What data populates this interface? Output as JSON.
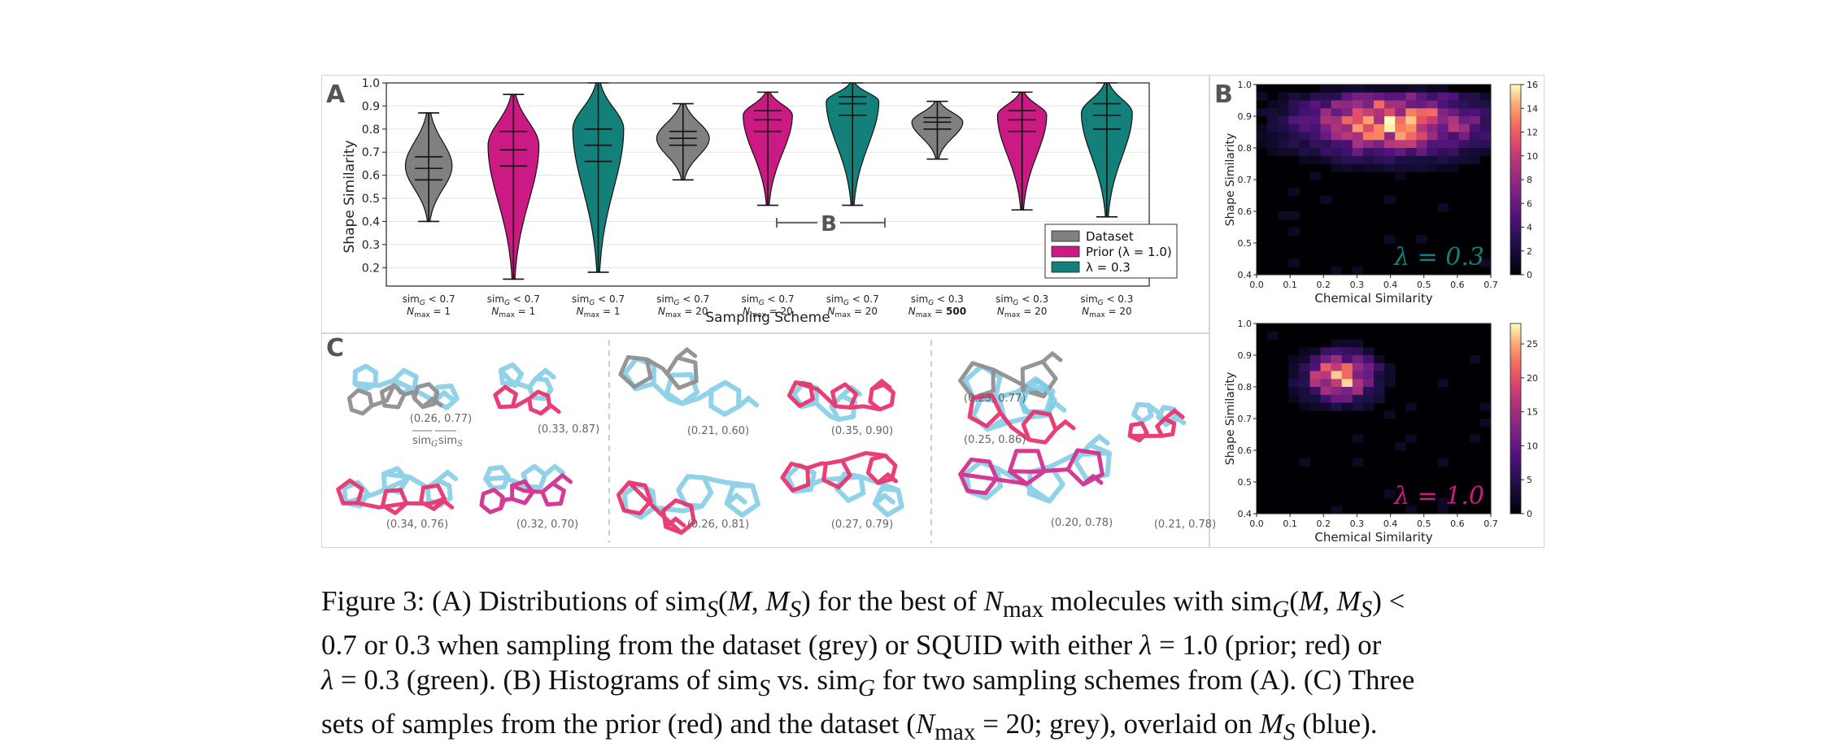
{
  "panel_a": {
    "letter": "A",
    "ylabel": "Shape Similarity",
    "xlabel": "Sampling Scheme",
    "yticks": [
      "1.0",
      "0.9",
      "0.8",
      "0.7",
      "0.6",
      "0.5",
      "0.4",
      "0.3",
      "0.2"
    ],
    "bracket_label": "B",
    "legend": [
      {
        "label": "Dataset",
        "color": "#808080"
      },
      {
        "label": "Prior (λ = 1.0)",
        "color": "#cc1a85"
      },
      {
        "label": "λ = 0.3",
        "color": "#138079"
      }
    ],
    "xcats": [
      {
        "sim": "sim_G < 0.7",
        "nmax": "N_max = 1",
        "color": "#808080",
        "bold": false
      },
      {
        "sim": "sim_G < 0.7",
        "nmax": "N_max = 1",
        "color": "#cc1a85",
        "bold": false
      },
      {
        "sim": "sim_G < 0.7",
        "nmax": "N_max = 1",
        "color": "#138079",
        "bold": false
      },
      {
        "sim": "sim_G < 0.7",
        "nmax": "N_max = 20",
        "color": "#808080",
        "bold": false
      },
      {
        "sim": "sim_G < 0.7",
        "nmax": "N_max = 20",
        "color": "#cc1a85",
        "bold": false
      },
      {
        "sim": "sim_G < 0.7",
        "nmax": "N_max = 20",
        "color": "#138079",
        "bold": false
      },
      {
        "sim": "sim_G < 0.3",
        "nmax": "N_max = 500",
        "color": "#808080",
        "bold": true
      },
      {
        "sim": "sim_G < 0.3",
        "nmax": "N_max = 20",
        "color": "#cc1a85",
        "bold": false
      },
      {
        "sim": "sim_G < 0.3",
        "nmax": "N_max = 20",
        "color": "#138079",
        "bold": false
      }
    ]
  },
  "chart_data": {
    "type": "violin",
    "ylabel": "Shape Similarity",
    "xlabel": "Sampling Scheme",
    "ylim": [
      0.12,
      1.0
    ],
    "series": [
      {
        "category": "sim_G<0.7, N_max=1",
        "group": "Dataset",
        "min": 0.4,
        "max": 0.87,
        "q1": 0.58,
        "median": 0.63,
        "q3": 0.68,
        "peak": 0.64,
        "width": 0.55
      },
      {
        "category": "sim_G<0.7, N_max=1",
        "group": "Prior (λ = 1.0)",
        "min": 0.15,
        "max": 0.95,
        "q1": 0.64,
        "median": 0.71,
        "q3": 0.79,
        "peak": 0.73,
        "width": 0.6
      },
      {
        "category": "sim_G<0.7, N_max=1",
        "group": "λ = 0.3",
        "min": 0.18,
        "max": 1.0,
        "q1": 0.66,
        "median": 0.73,
        "q3": 0.8,
        "peak": 0.8,
        "width": 0.6
      },
      {
        "category": "sim_G<0.7, N_max=20",
        "group": "Dataset",
        "min": 0.58,
        "max": 0.91,
        "q1": 0.73,
        "median": 0.76,
        "q3": 0.79,
        "peak": 0.76,
        "width": 0.62
      },
      {
        "category": "sim_G<0.7, N_max=20",
        "group": "Prior (λ = 1.0)",
        "min": 0.47,
        "max": 0.96,
        "q1": 0.79,
        "median": 0.84,
        "q3": 0.88,
        "peak": 0.86,
        "width": 0.58
      },
      {
        "category": "sim_G<0.7, N_max=20",
        "group": "λ = 0.3",
        "min": 0.47,
        "max": 1.0,
        "q1": 0.86,
        "median": 0.91,
        "q3": 0.94,
        "peak": 0.92,
        "width": 0.62
      },
      {
        "category": "sim_G<0.3, N_max=500",
        "group": "Dataset",
        "min": 0.67,
        "max": 0.92,
        "q1": 0.8,
        "median": 0.83,
        "q3": 0.85,
        "peak": 0.83,
        "width": 0.6
      },
      {
        "category": "sim_G<0.3, N_max=20",
        "group": "Prior (λ = 1.0)",
        "min": 0.45,
        "max": 0.96,
        "q1": 0.79,
        "median": 0.84,
        "q3": 0.88,
        "peak": 0.86,
        "width": 0.58
      },
      {
        "category": "sim_G<0.3, N_max=20",
        "group": "λ = 0.3",
        "min": 0.42,
        "max": 1.0,
        "q1": 0.8,
        "median": 0.86,
        "q3": 0.91,
        "peak": 0.87,
        "width": 0.6
      }
    ],
    "heatmaps": [
      {
        "xlabel": "Chemical Similarity",
        "ylabel": "Shape Similarity",
        "xlim": [
          0,
          0.7
        ],
        "ylim": [
          0.4,
          1.0
        ],
        "colorbar_ticks": [
          0,
          2,
          4,
          6,
          8,
          10,
          12,
          14,
          16
        ],
        "center": [
          0.4,
          0.88
        ],
        "spread": [
          0.18,
          0.07
        ],
        "vmax": 16,
        "annotation": "λ = 0.3"
      },
      {
        "xlabel": "Chemical Similarity",
        "ylabel": "Shape Similarity",
        "xlim": [
          0,
          0.7
        ],
        "ylim": [
          0.4,
          1.0
        ],
        "colorbar_ticks": [
          0,
          5,
          10,
          15,
          20,
          25
        ],
        "center": [
          0.25,
          0.83
        ],
        "spread": [
          0.07,
          0.05
        ],
        "vmax": 28,
        "annotation": "λ = 1.0"
      }
    ]
  },
  "panel_b": {
    "letter": "B",
    "xticks": [
      "0.0",
      "0.1",
      "0.2",
      "0.3",
      "0.4",
      "0.5",
      "0.6",
      "0.7"
    ],
    "yticks": [
      "1.0",
      "0.9",
      "0.8",
      "0.7",
      "0.6",
      "0.5",
      "0.4"
    ],
    "xlabel": "Chemical Similarity",
    "ylabel": "Shape Similarity",
    "top_annotation": "λ = 0.3",
    "bottom_annotation": "λ = 1.0",
    "top_color": "#138079",
    "bottom_color": "#cc1a85"
  },
  "panel_c": {
    "letter": "C",
    "legend_sim_g": "sim_G",
    "legend_sim_s": "sim_S",
    "labels": [
      "(0.26, 0.77)",
      "(0.33, 0.87)",
      "(0.34, 0.76)",
      "(0.32, 0.70)",
      "(0.21, 0.60)",
      "(0.35, 0.90)",
      "(0.26, 0.81)",
      "(0.27, 0.79)",
      "(0.23, 0.77)",
      "(0.25, 0.86)",
      "(0.20, 0.78)",
      "(0.21, 0.78)"
    ]
  },
  "caption": {
    "lines": [
      "Figure 3: (A) Distributions of sim_S(M, M_S) for the best of N_max molecules with sim_G(M, M_S) <",
      "0.7 or 0.3 when sampling from the dataset (grey) or SQUID with either λ = 1.0 (prior; red) or",
      "λ = 0.3 (green). (B) Histograms of sim_S vs. sim_G for two sampling schemes from (A). (C) Three",
      "sets of samples from the prior (red) and the dataset (N_max = 20; grey), overlaid on M_S (blue)."
    ]
  }
}
